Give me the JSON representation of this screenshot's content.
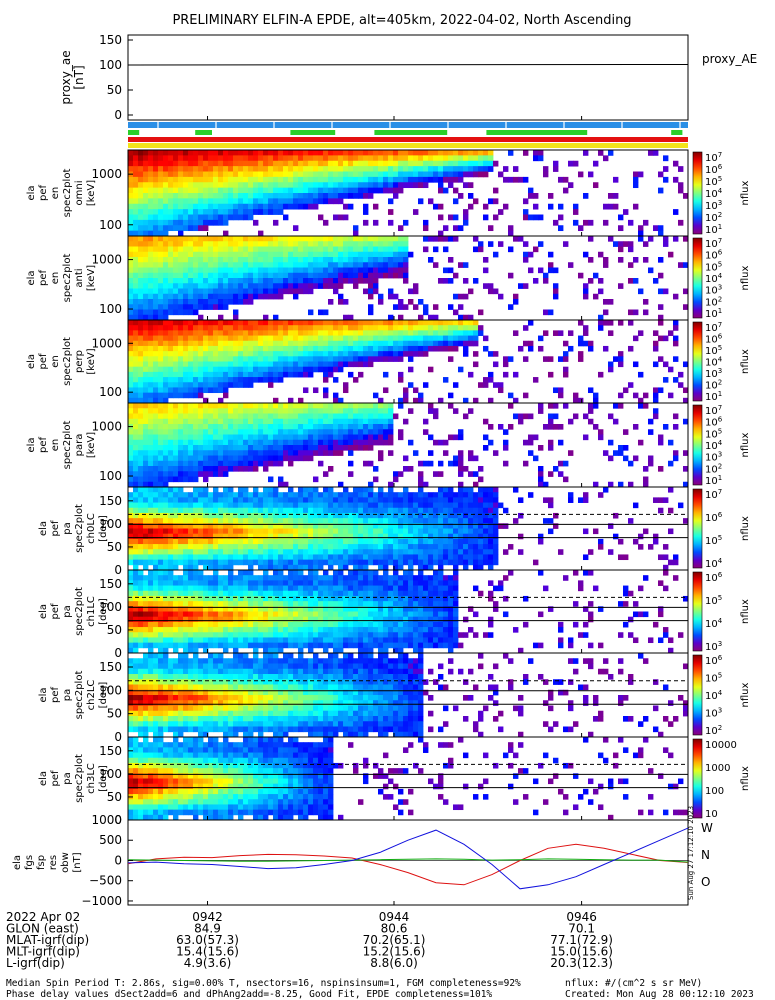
{
  "title": "PRELIMINARY ELFIN-A EPDE, alt=405km, 2022-04-02, North Ascending",
  "colors": {
    "bar_blue": "#2b8fe6",
    "bar_green": "#2ad02a",
    "bar_red": "#e41010",
    "bar_yellow": "#f3e41a",
    "b_w": "#dd1111",
    "b_n": "#11aa11",
    "b_o": "#1111dd"
  },
  "status_bars": {
    "green_segments": [
      [
        0.0,
        0.02
      ],
      [
        0.12,
        0.15
      ],
      [
        0.29,
        0.37
      ],
      [
        0.44,
        0.57
      ],
      [
        0.64,
        0.82
      ],
      [
        0.97,
        0.99
      ]
    ]
  },
  "panels": [
    {
      "id": "proxy_ae",
      "ylabel": [
        "proxy_ae",
        "[nT]"
      ],
      "yticks": [
        "150",
        "100",
        "50",
        "0"
      ],
      "right_label": "proxy_AE"
    },
    {
      "id": "en1",
      "ylabel": [
        "ela",
        "pef",
        "en",
        "spec2plot",
        "omni",
        "[keV]"
      ],
      "yticks": [
        "1000",
        "100"
      ],
      "cbar": {
        "ticks": [
          "10^7",
          "10^6",
          "10^5",
          "10^4",
          "10^3",
          "10^2",
          "10^1"
        ],
        "label": "nflux"
      }
    },
    {
      "id": "en2",
      "ylabel": [
        "ela",
        "pef",
        "en",
        "spec2plot",
        "anti",
        "[keV]"
      ],
      "yticks": [
        "1000",
        "100"
      ],
      "cbar": {
        "ticks": [
          "10^7",
          "10^6",
          "10^5",
          "10^4",
          "10^3",
          "10^2",
          "10^1"
        ],
        "label": "nflux"
      }
    },
    {
      "id": "en3",
      "ylabel": [
        "ela",
        "pef",
        "en",
        "spec2plot",
        "perp",
        "[keV]"
      ],
      "yticks": [
        "1000",
        "100"
      ],
      "cbar": {
        "ticks": [
          "10^7",
          "10^6",
          "10^5",
          "10^4",
          "10^3",
          "10^2",
          "10^1"
        ],
        "label": "nflux"
      }
    },
    {
      "id": "en4",
      "ylabel": [
        "ela",
        "pef",
        "en",
        "spec2plot",
        "para",
        "[keV]"
      ],
      "yticks": [
        "1000",
        "100"
      ],
      "cbar": {
        "ticks": [
          "10^7",
          "10^6",
          "10^5",
          "10^4",
          "10^3",
          "10^2",
          "10^1"
        ],
        "label": "nflux"
      }
    },
    {
      "id": "pa0",
      "ylabel": [
        "ela",
        "pef",
        "pa",
        "spec2plot",
        "ch0LC",
        "[deg]"
      ],
      "yticks": [
        "150",
        "100",
        "50",
        "0"
      ],
      "cbar": {
        "ticks": [
          "10^7",
          "10^6",
          "10^5",
          "10^4"
        ],
        "label": "nflux"
      }
    },
    {
      "id": "pa1",
      "ylabel": [
        "ela",
        "pef",
        "pa",
        "spec2plot",
        "ch1LC",
        "[deg]"
      ],
      "yticks": [
        "150",
        "100",
        "50",
        "0"
      ],
      "cbar": {
        "ticks": [
          "10^6",
          "10^5",
          "10^4",
          "10^3"
        ],
        "label": "nflux"
      }
    },
    {
      "id": "pa2",
      "ylabel": [
        "ela",
        "pef",
        "pa",
        "spec2plot",
        "ch2LC",
        "[deg]"
      ],
      "yticks": [
        "150",
        "100",
        "50",
        "0"
      ],
      "cbar": {
        "ticks": [
          "10^6",
          "10^5",
          "10^4",
          "10^3",
          "10^2"
        ],
        "label": "nflux"
      }
    },
    {
      "id": "pa3",
      "ylabel": [
        "ela",
        "pef",
        "pa",
        "spec2plot",
        "ch3LC",
        "[deg]"
      ],
      "yticks": [
        "150",
        "100",
        "50",
        "0"
      ],
      "cbar": {
        "ticks": [
          "10000",
          "1000",
          "100",
          "10"
        ],
        "label": "nflux"
      }
    },
    {
      "id": "bfield",
      "ylabel": [
        "ela",
        "fgs",
        "fsp",
        "res",
        "obw",
        "[nT]"
      ],
      "yticks": [
        "1000",
        "500",
        "0",
        "−500",
        "−1000"
      ],
      "legend": [
        "W",
        "N",
        "O"
      ]
    }
  ],
  "chart_data": [
    {
      "type": "line",
      "title": "PRELIMINARY ELFIN-A EPDE, alt=405km, 2022-04-02, North Ascending",
      "ylabel": "proxy_ae [nT]",
      "ylim": [
        0,
        150
      ],
      "series": [
        {
          "name": "proxy_AE",
          "x": [
            0,
            1
          ],
          "values": [
            100,
            101
          ]
        }
      ]
    },
    {
      "type": "heatmap",
      "ylabel": "ela pef en spec2plot omni [keV]",
      "yscale": "log",
      "ylim": [
        60,
        3000
      ],
      "zlabel": "nflux",
      "zlim": [
        "10^1",
        "10^7"
      ]
    },
    {
      "type": "heatmap",
      "ylabel": "ela pef en spec2plot anti [keV]",
      "yscale": "log",
      "ylim": [
        60,
        3000
      ],
      "zlabel": "nflux",
      "zlim": [
        "10^1",
        "10^7"
      ]
    },
    {
      "type": "heatmap",
      "ylabel": "ela pef en spec2plot perp [keV]",
      "yscale": "log",
      "ylim": [
        60,
        3000
      ],
      "zlabel": "nflux",
      "zlim": [
        "10^1",
        "10^7"
      ]
    },
    {
      "type": "heatmap",
      "ylabel": "ela pef en spec2plot para [keV]",
      "yscale": "log",
      "ylim": [
        60,
        3000
      ],
      "zlabel": "nflux",
      "zlim": [
        "10^1",
        "10^7"
      ]
    },
    {
      "type": "heatmap",
      "ylabel": "ela pef pa spec2plot ch0LC [deg]",
      "ylim": [
        0,
        180
      ],
      "zlabel": "nflux",
      "zlim": [
        "10^4",
        "10^7"
      ]
    },
    {
      "type": "heatmap",
      "ylabel": "ela pef pa spec2plot ch1LC [deg]",
      "ylim": [
        0,
        180
      ],
      "zlabel": "nflux",
      "zlim": [
        "10^3",
        "10^6"
      ]
    },
    {
      "type": "heatmap",
      "ylabel": "ela pef pa spec2plot ch2LC [deg]",
      "ylim": [
        0,
        180
      ],
      "zlabel": "nflux",
      "zlim": [
        "10^2",
        "10^6"
      ]
    },
    {
      "type": "heatmap",
      "ylabel": "ela pef pa spec2plot ch3LC [deg]",
      "ylim": [
        0,
        180
      ],
      "zlabel": "nflux",
      "zlim": [
        "10",
        "10000"
      ]
    },
    {
      "type": "line",
      "ylabel": "ela fgs fsp res obw [nT]",
      "ylim": [
        -1100,
        1000
      ],
      "x": [
        0,
        0.05,
        0.1,
        0.15,
        0.2,
        0.25,
        0.3,
        0.35,
        0.4,
        0.45,
        0.5,
        0.55,
        0.6,
        0.65,
        0.7,
        0.75,
        0.8,
        0.85,
        0.9,
        0.95,
        1.0
      ],
      "series": [
        {
          "name": "W",
          "values": [
            -80,
            40,
            80,
            70,
            120,
            150,
            140,
            110,
            60,
            -100,
            -300,
            -550,
            -600,
            -350,
            0,
            300,
            400,
            300,
            150,
            0,
            -50
          ]
        },
        {
          "name": "N",
          "values": [
            20,
            10,
            0,
            -10,
            -20,
            -20,
            -10,
            0,
            10,
            20,
            30,
            40,
            30,
            10,
            20,
            40,
            30,
            20,
            10,
            10,
            -40
          ]
        },
        {
          "name": "O",
          "values": [
            -60,
            -40,
            -80,
            -100,
            -150,
            -200,
            -180,
            -100,
            0,
            200,
            500,
            750,
            400,
            -100,
            -700,
            -600,
            -400,
            -100,
            200,
            500,
            800
          ]
        }
      ]
    }
  ],
  "xaxis": {
    "ticks": [
      "0942",
      "0944",
      "0946"
    ],
    "rows": [
      {
        "label": "2022 Apr 02",
        "values": [
          "0942",
          "0944",
          "0946"
        ]
      },
      {
        "label": "GLON (east)",
        "values": [
          "84.9",
          "80.6",
          "70.1"
        ]
      },
      {
        "label": "MLAT-igrf(dip)",
        "values": [
          "63.0(57.3)",
          "70.2(65.1)",
          "77.1(72.9)"
        ]
      },
      {
        "label": "MLT-igrf(dip)",
        "values": [
          "15.4(15.6)",
          "15.2(15.6)",
          "15.0(15.6)"
        ]
      },
      {
        "label": "L-igrf(dip)",
        "values": [
          "4.9(3.6)",
          "8.8(6.0)",
          "20.3(12.3)"
        ]
      }
    ]
  },
  "footer": {
    "line1_left": "Median Spin Period T: 2.86s, sig=0.00% T, nsectors=16, nspinsinsum=1, FGM completeness=92%",
    "line1_right": "nflux: #/(cm^2 s sr MeV)",
    "line2_left": "Phase delay values dSect2add=6 and dPhAng2add=-8.25, Good Fit, EPDE completeness=101%",
    "line2_right": "Created: Mon Aug 28 00:12:10 2023"
  },
  "side_stamp": "Sun Aug 27 17:12:10 2023"
}
